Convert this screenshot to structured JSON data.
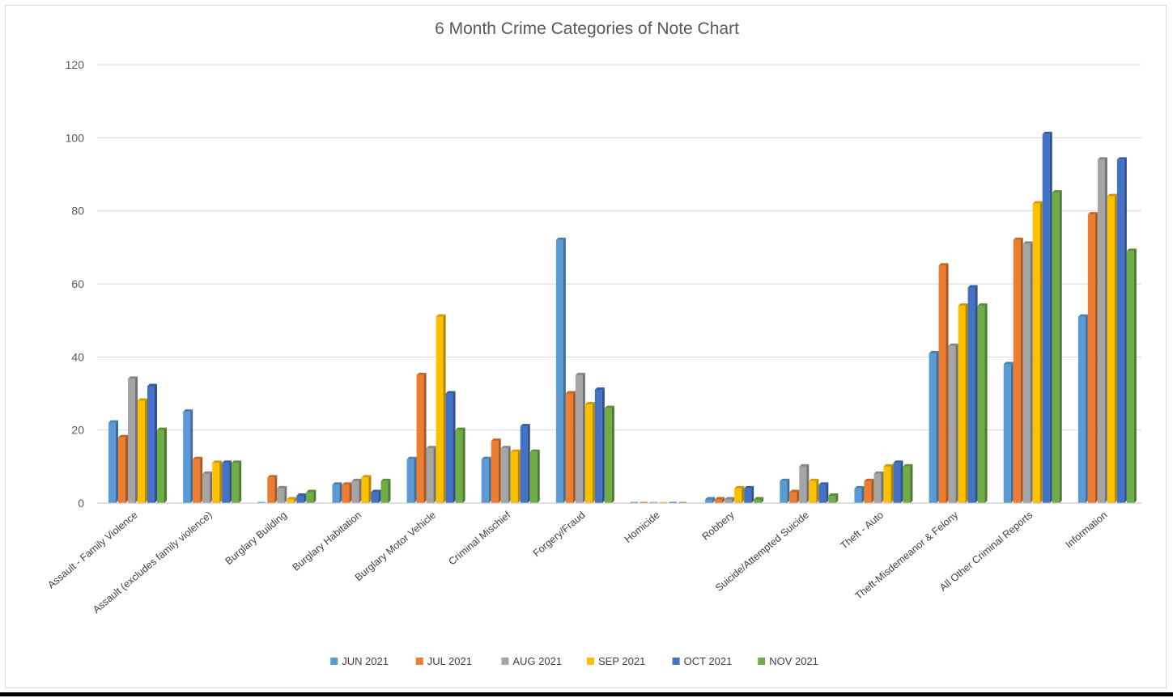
{
  "chart_data": {
    "type": "bar",
    "title": "6 Month Crime Categories of Note Chart",
    "xlabel": "",
    "ylabel": "",
    "ylim": [
      0,
      120
    ],
    "yticks": [
      0,
      20,
      40,
      60,
      80,
      100,
      120
    ],
    "grid": true,
    "legend_position": "bottom",
    "categories": [
      "Assault - Family Violence",
      "Assault (excludes family violence)",
      "Burglary Building",
      "Burglary Habitation",
      "Burglary Motor Vehicle",
      "Criminal Mischief",
      "Forgery/Fraud",
      "Homicide",
      "Robbery",
      "Suicide/Attempted Suicide",
      "Theft - Auto",
      "Theft-Misdemeanor &  Felony",
      "All Other Criminal Reports",
      "Information"
    ],
    "series": [
      {
        "name": "JUN 2021",
        "color": "#5B9BD5",
        "values": [
          22,
          25,
          0,
          5,
          12,
          12,
          72,
          0,
          1,
          6,
          4,
          41,
          38,
          51
        ]
      },
      {
        "name": "JUL 2021",
        "color": "#ED7D31",
        "values": [
          18,
          12,
          7,
          5,
          35,
          17,
          30,
          0,
          1,
          3,
          6,
          65,
          72,
          79
        ]
      },
      {
        "name": "AUG 2021",
        "color": "#A5A5A5",
        "values": [
          34,
          8,
          4,
          6,
          15,
          15,
          35,
          0,
          1,
          10,
          8,
          43,
          71,
          94
        ]
      },
      {
        "name": "SEP 2021",
        "color": "#FFC000",
        "values": [
          28,
          11,
          1,
          7,
          51,
          14,
          27,
          0,
          4,
          6,
          10,
          54,
          82,
          84
        ]
      },
      {
        "name": "OCT 2021",
        "color": "#4472C4",
        "values": [
          32,
          11,
          2,
          3,
          30,
          21,
          31,
          0,
          4,
          5,
          11,
          59,
          101,
          94
        ]
      },
      {
        "name": "NOV 2021",
        "color": "#70AD47",
        "values": [
          20,
          11,
          3,
          6,
          20,
          14,
          26,
          0,
          1,
          2,
          10,
          54,
          85,
          69
        ]
      }
    ]
  }
}
